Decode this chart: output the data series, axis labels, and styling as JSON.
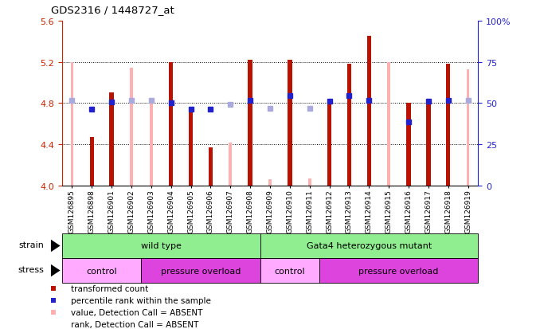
{
  "title": "GDS2316 / 1448727_at",
  "samples": [
    "GSM126895",
    "GSM126898",
    "GSM126901",
    "GSM126902",
    "GSM126903",
    "GSM126904",
    "GSM126905",
    "GSM126906",
    "GSM126907",
    "GSM126908",
    "GSM126909",
    "GSM126910",
    "GSM126911",
    "GSM126912",
    "GSM126913",
    "GSM126914",
    "GSM126915",
    "GSM126916",
    "GSM126917",
    "GSM126918",
    "GSM126919"
  ],
  "red_values": [
    null,
    4.47,
    4.9,
    null,
    null,
    5.2,
    4.75,
    4.37,
    null,
    5.22,
    null,
    5.22,
    null,
    4.8,
    5.18,
    5.45,
    null,
    4.8,
    4.8,
    5.18,
    null
  ],
  "pink_values": [
    5.2,
    null,
    null,
    5.14,
    4.82,
    null,
    null,
    null,
    4.42,
    null,
    4.06,
    null,
    4.07,
    null,
    null,
    null,
    5.2,
    null,
    null,
    null,
    5.13
  ],
  "blue_y": [
    null,
    4.74,
    4.81,
    null,
    null,
    4.8,
    4.74,
    4.74,
    null,
    4.83,
    null,
    4.87,
    null,
    4.82,
    4.87,
    4.83,
    null,
    4.62,
    4.82,
    4.83,
    null
  ],
  "lblue_y": [
    4.83,
    null,
    null,
    4.83,
    4.83,
    null,
    null,
    null,
    4.79,
    null,
    4.75,
    null,
    4.75,
    null,
    null,
    null,
    null,
    null,
    null,
    null,
    4.83
  ],
  "ylim_left": [
    4.0,
    5.6
  ],
  "ylim_right": [
    0,
    100
  ],
  "yticks_left": [
    4.0,
    4.4,
    4.8,
    5.2,
    5.6
  ],
  "yticks_right": [
    0,
    25,
    50,
    75,
    100
  ],
  "ytick_right_labels": [
    "0",
    "25",
    "50",
    "75",
    "100%"
  ],
  "hgrid_lines": [
    4.4,
    4.8,
    5.2
  ],
  "strain_groups": [
    {
      "label": "wild type",
      "start": 0,
      "end": 9,
      "color": "#90ee90"
    },
    {
      "label": "Gata4 heterozygous mutant",
      "start": 10,
      "end": 20,
      "color": "#90ee90"
    }
  ],
  "stress_groups": [
    {
      "label": "control",
      "start": 0,
      "end": 3,
      "color": "#ffaaff"
    },
    {
      "label": "pressure overload",
      "start": 4,
      "end": 9,
      "color": "#dd44dd"
    },
    {
      "label": "control",
      "start": 10,
      "end": 12,
      "color": "#ffaaff"
    },
    {
      "label": "pressure overload",
      "start": 13,
      "end": 20,
      "color": "#dd44dd"
    }
  ],
  "colors": {
    "red": "#bb1100",
    "pink": "#ffb0b0",
    "blue": "#2222cc",
    "lblue": "#aaaadd",
    "bg_xtick": "#c8c8c8"
  },
  "legend": [
    {
      "color": "#bb1100",
      "label": "transformed count"
    },
    {
      "color": "#2222cc",
      "label": "percentile rank within the sample"
    },
    {
      "color": "#ffb0b0",
      "label": "value, Detection Call = ABSENT"
    },
    {
      "color": "#aaaadd",
      "label": "rank, Detection Call = ABSENT"
    }
  ]
}
